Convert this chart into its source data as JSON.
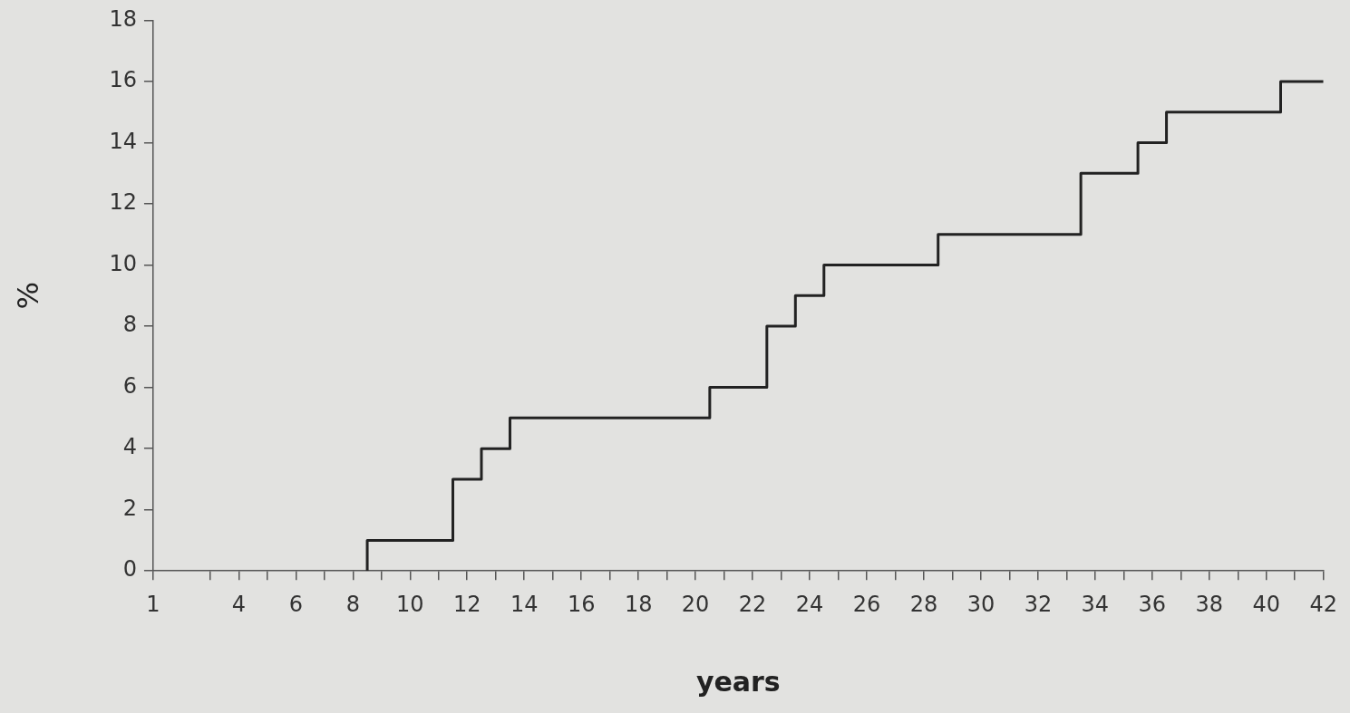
{
  "chart_data": {
    "type": "step",
    "xlabel": "years",
    "ylabel": "%",
    "x": [
      8.5,
      8.5,
      11.5,
      12.5,
      13.5,
      20.5,
      22.5,
      23.5,
      24.5,
      28.5,
      33.5,
      35.5,
      36.5,
      40.5,
      42
    ],
    "series": [
      {
        "color": "#222222",
        "values": [
          0,
          1,
          3,
          4,
          5,
          6,
          8,
          9,
          10,
          11,
          13,
          14,
          15,
          16,
          16
        ]
      }
    ],
    "xlim": [
      1,
      42
    ],
    "xticks": [
      1,
      {
        "value": 3,
        "label": null
      },
      4,
      {
        "value": 5,
        "label": null
      },
      6,
      {
        "value": 7,
        "label": null
      },
      8,
      {
        "value": 9,
        "label": null
      },
      10,
      {
        "value": 11,
        "label": null
      },
      12,
      {
        "value": 13,
        "label": null
      },
      14,
      {
        "value": 15,
        "label": null
      },
      16,
      {
        "value": 17,
        "label": null
      },
      18,
      {
        "value": 19,
        "label": null
      },
      20,
      {
        "value": 21,
        "label": null
      },
      22,
      {
        "value": 23,
        "label": null
      },
      24,
      {
        "value": 25,
        "label": null
      },
      26,
      {
        "value": 27,
        "label": null
      },
      28,
      {
        "value": 29,
        "label": null
      },
      30,
      {
        "value": 31,
        "label": null
      },
      32,
      {
        "value": 33,
        "label": null
      },
      34,
      {
        "value": 35,
        "label": null
      },
      36,
      {
        "value": 37,
        "label": null
      },
      38,
      {
        "value": 39,
        "label": null
      },
      40,
      {
        "value": 41,
        "label": null
      },
      42
    ],
    "ylim": [
      0,
      18
    ],
    "yticks": [
      0,
      2,
      4,
      6,
      8,
      10,
      12,
      14,
      16,
      18
    ],
    "grid": false,
    "legend": false,
    "marker": "none",
    "line_style": "solid"
  }
}
